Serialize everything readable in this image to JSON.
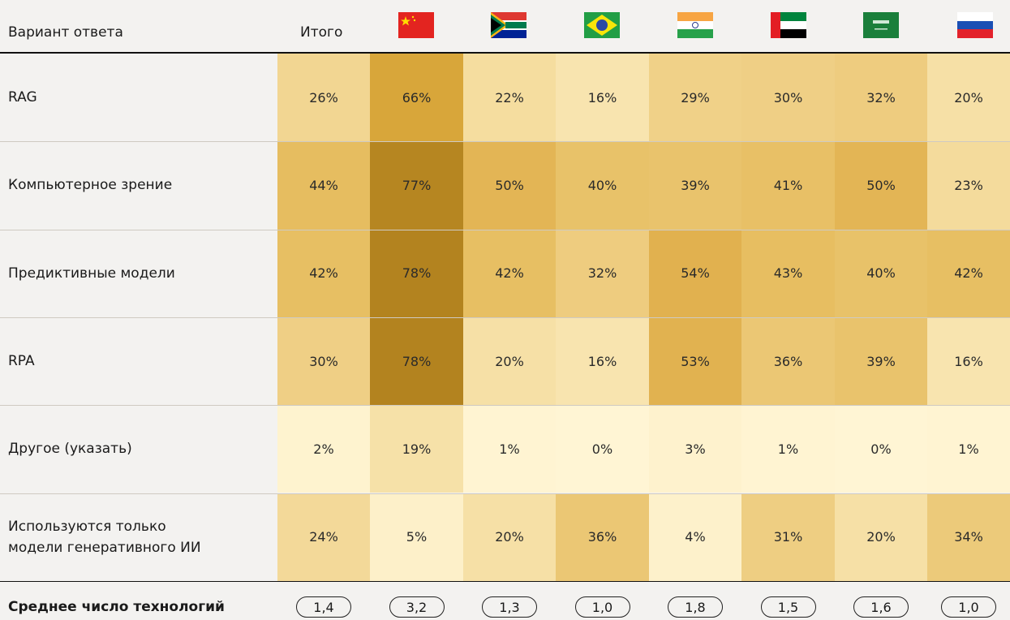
{
  "header": {
    "label": "Вариант ответа",
    "total": "Итого"
  },
  "table": {
    "rows": [
      {
        "label": "RAG",
        "cells": [
          "26%",
          "66%",
          "22%",
          "16%",
          "29%",
          "30%",
          "32%",
          "20%"
        ]
      },
      {
        "label": "Компьютерное зрение",
        "cells": [
          "44%",
          "77%",
          "50%",
          "40%",
          "39%",
          "41%",
          "50%",
          "23%"
        ]
      },
      {
        "label": "Предиктивные модели",
        "cells": [
          "42%",
          "78%",
          "42%",
          "32%",
          "54%",
          "43%",
          "40%",
          "42%"
        ]
      },
      {
        "label": "RPA",
        "cells": [
          "30%",
          "78%",
          "20%",
          "16%",
          "53%",
          "36%",
          "39%",
          "16%"
        ]
      },
      {
        "label": "Другое (указать)",
        "cells": [
          "2%",
          "19%",
          "1%",
          "0%",
          "3%",
          "1%",
          "0%",
          "1%"
        ]
      },
      {
        "label": "Используются только\nмодели генеративного ИИ",
        "cells": [
          "24%",
          "5%",
          "20%",
          "36%",
          "4%",
          "31%",
          "20%",
          "34%"
        ]
      }
    ]
  },
  "footer": {
    "label": "Среднее число технологий",
    "values": [
      "1,4",
      "3,2",
      "1,3",
      "1,0",
      "1,8",
      "1,5",
      "1,6",
      "1,0"
    ]
  }
}
